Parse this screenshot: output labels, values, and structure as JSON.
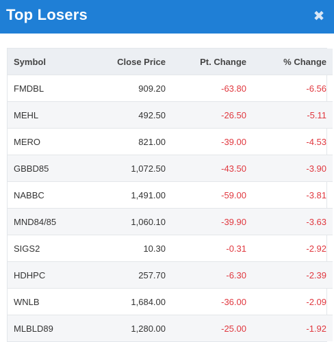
{
  "modal": {
    "title": "Top Losers",
    "close_glyph": "✖",
    "close_icon": "close-icon"
  },
  "table": {
    "headers": [
      "Symbol",
      "Close Price",
      "Pt. Change",
      "% Change"
    ],
    "rows": [
      [
        "FMDBL",
        "909.20",
        "-63.80",
        "-6.56"
      ],
      [
        "MEHL",
        "492.50",
        "-26.50",
        "-5.11"
      ],
      [
        "MERO",
        "821.00",
        "-39.00",
        "-4.53"
      ],
      [
        "GBBD85",
        "1,072.50",
        "-43.50",
        "-3.90"
      ],
      [
        "NABBC",
        "1,491.00",
        "-59.00",
        "-3.81"
      ],
      [
        "MND84/85",
        "1,060.10",
        "-39.90",
        "-3.63"
      ],
      [
        "SIGS2",
        "10.30",
        "-0.31",
        "-2.92"
      ],
      [
        "HDHPC",
        "257.70",
        "-6.30",
        "-2.39"
      ],
      [
        "WNLB",
        "1,684.00",
        "-36.00",
        "-2.09"
      ],
      [
        "MLBLD89",
        "1,280.00",
        "-25.00",
        "-1.92"
      ]
    ]
  },
  "colors": {
    "header_bg": "#1f7fd6",
    "negative": "#e0373e",
    "table_head_bg": "#eceff3"
  }
}
